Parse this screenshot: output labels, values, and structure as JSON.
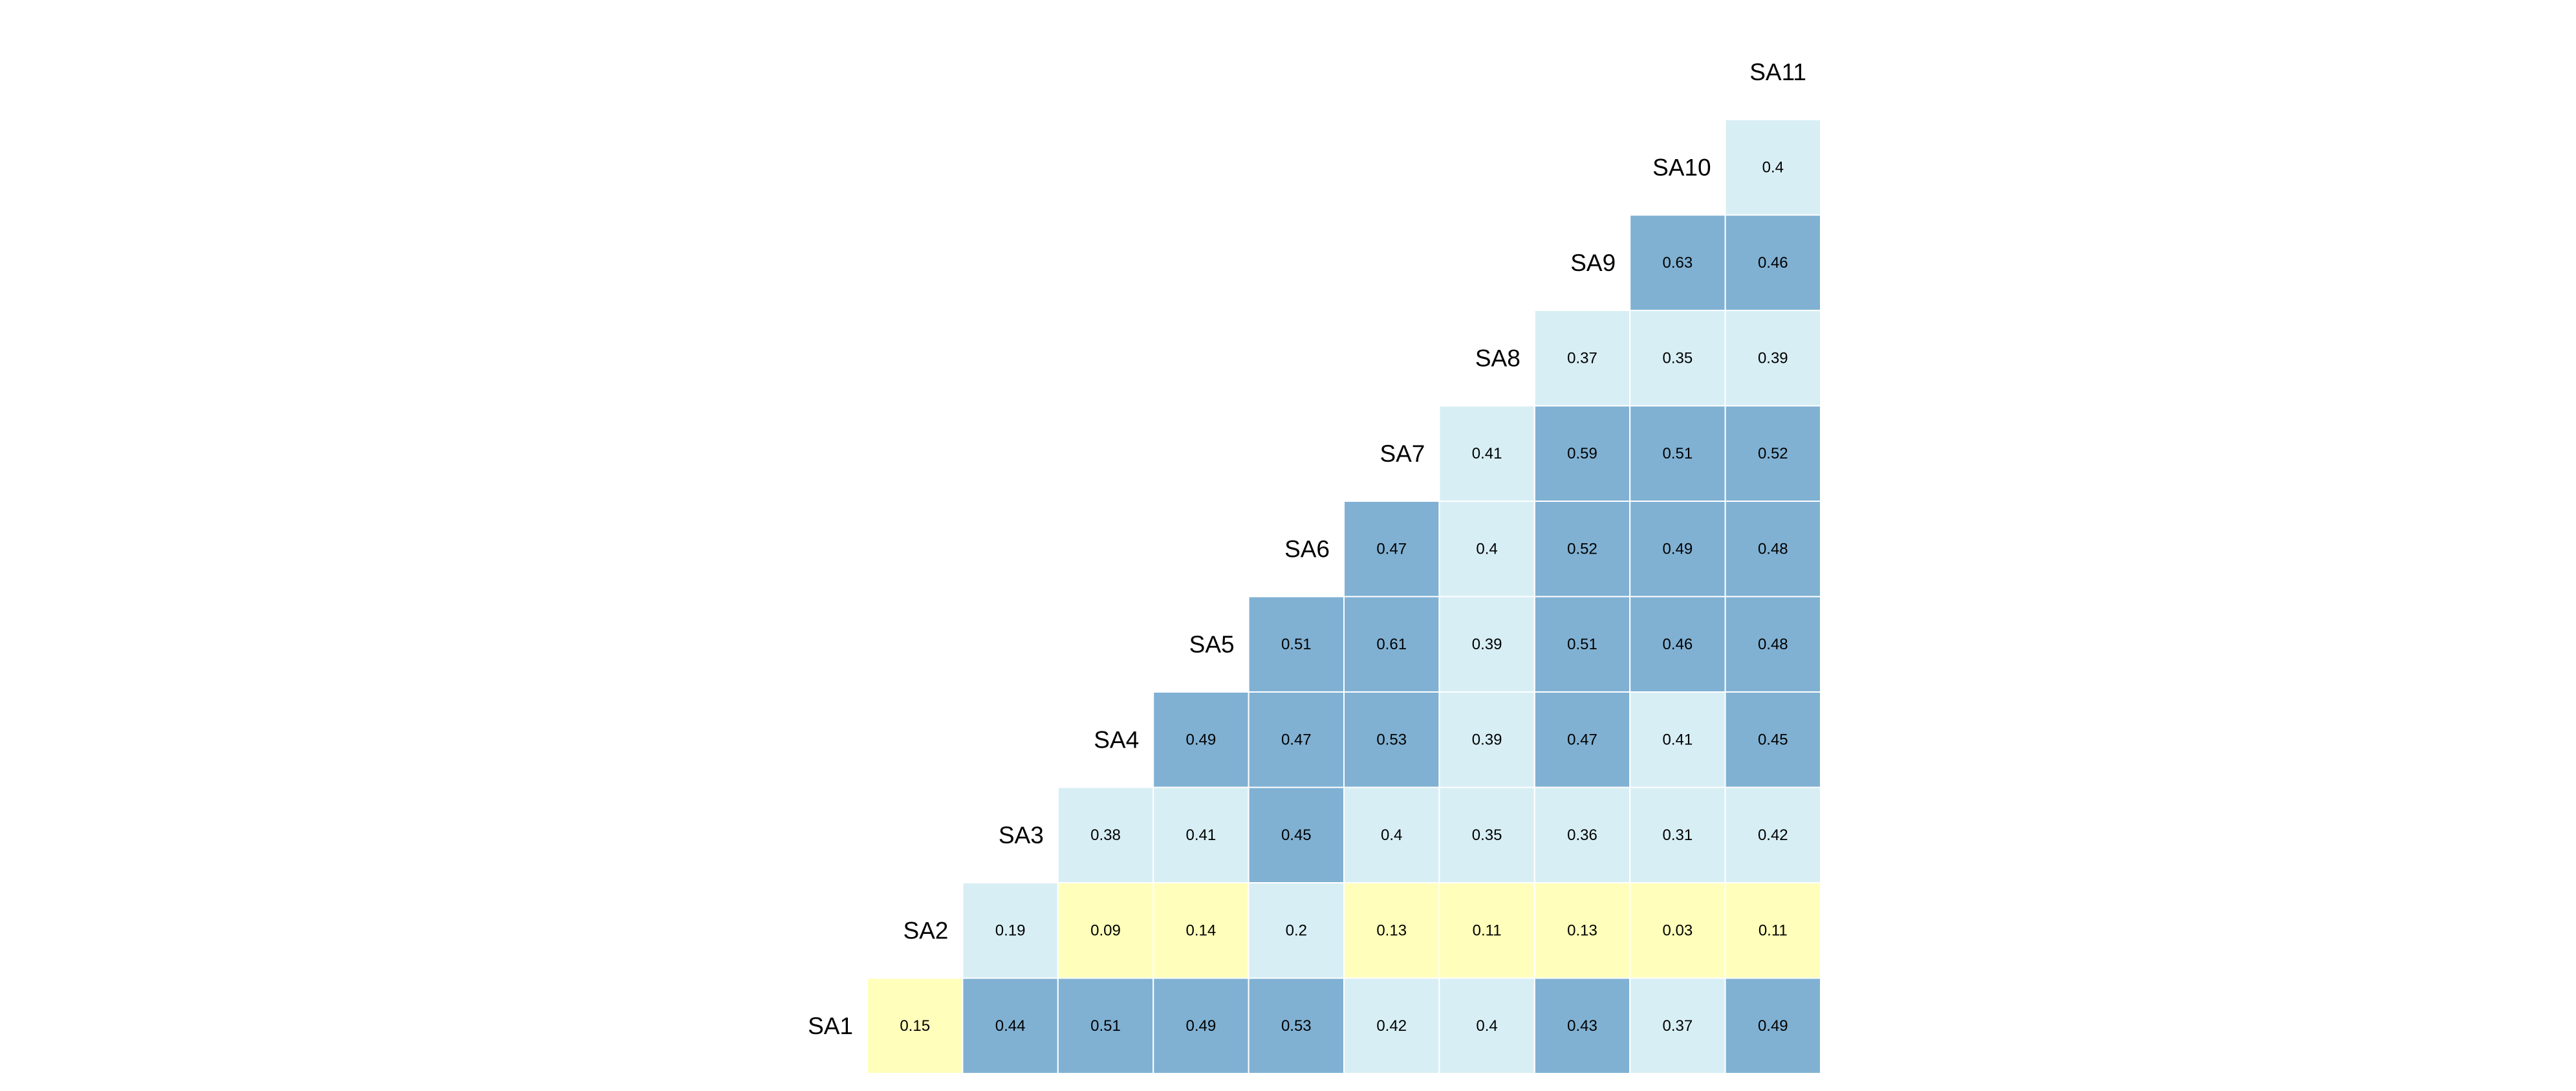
{
  "chart_data": {
    "type": "heatmap",
    "title": "",
    "xlabel": "",
    "ylabel": "",
    "rows": [
      "SA1",
      "SA2",
      "SA3",
      "SA4",
      "SA5",
      "SA6",
      "SA7",
      "SA8",
      "SA9",
      "SA10",
      "SA11"
    ],
    "columns": [
      "SA2",
      "SA3",
      "SA4",
      "SA5",
      "SA6",
      "SA7",
      "SA8",
      "SA9",
      "SA10",
      "SA11"
    ],
    "values": [
      [
        0.15,
        0.44,
        0.51,
        0.49,
        0.53,
        0.42,
        0.4,
        0.43,
        0.37,
        0.49
      ],
      [
        0.19,
        0.09,
        0.14,
        0.2,
        0.13,
        0.11,
        0.13,
        0.03,
        0.11
      ],
      [
        0.38,
        0.41,
        0.45,
        0.4,
        0.35,
        0.36,
        0.31,
        0.42
      ],
      [
        0.49,
        0.47,
        0.53,
        0.39,
        0.47,
        0.41,
        0.45
      ],
      [
        0.51,
        0.61,
        0.39,
        0.51,
        0.46,
        0.48
      ],
      [
        0.47,
        0.4,
        0.52,
        0.49,
        0.48
      ],
      [
        0.41,
        0.59,
        0.51,
        0.52
      ],
      [
        0.37,
        0.35,
        0.39
      ],
      [
        0.63,
        0.46
      ],
      [
        0.4
      ],
      []
    ],
    "labels": [
      [
        "0.15",
        "0.44",
        "0.51",
        "0.49",
        "0.53",
        "0.42",
        "0.4",
        "0.43",
        "0.37",
        "0.49"
      ],
      [
        "0.19",
        "0.09",
        "0.14",
        "0.2",
        "0.13",
        "0.11",
        "0.13",
        "0.03",
        "0.11"
      ],
      [
        "0.38",
        "0.41",
        "0.45",
        "0.4",
        "0.35",
        "0.36",
        "0.31",
        "0.42"
      ],
      [
        "0.49",
        "0.47",
        "0.53",
        "0.39",
        "0.47",
        "0.41",
        "0.45"
      ],
      [
        "0.51",
        "0.61",
        "0.39",
        "0.51",
        "0.46",
        "0.48"
      ],
      [
        "0.47",
        "0.4",
        "0.52",
        "0.49",
        "0.48"
      ],
      [
        "0.41",
        "0.59",
        "0.51",
        "0.52"
      ],
      [
        "0.37",
        "0.35",
        "0.39"
      ],
      [
        "0.63",
        "0.46"
      ],
      [
        "0.4"
      ],
      []
    ],
    "color_scale": [
      {
        "max": 0.15,
        "color": "#ffffbb"
      },
      {
        "max": 0.42,
        "color": "#d7eef4"
      },
      {
        "max": 1.0,
        "color": "#80b1d3"
      }
    ],
    "grid": false,
    "legend": "none"
  }
}
